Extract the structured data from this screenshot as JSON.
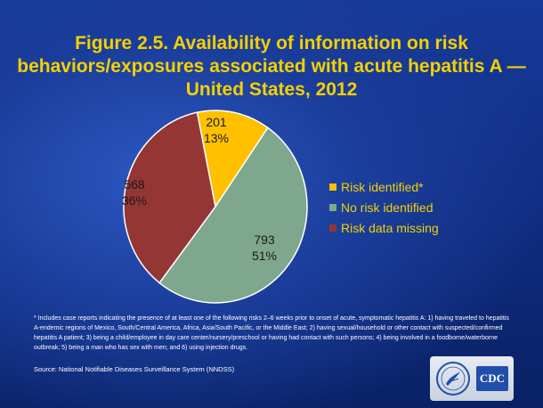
{
  "title": {
    "line1": "Figure 2.5. Availability of information on risk",
    "line2": "behaviors/exposures associated with acute hepatitis A —",
    "line3": "United States, 2012"
  },
  "chart_data": {
    "type": "pie",
    "slices": [
      {
        "name": "Risk identified*",
        "value": 201,
        "percent": "13%",
        "color": "#ffc000"
      },
      {
        "name": "No risk identified",
        "value": 793,
        "percent": "51%",
        "color": "#7fa78e"
      },
      {
        "name": "Risk data missing",
        "value": 568,
        "percent": "36%",
        "color": "#943634"
      }
    ],
    "legend_position": "right"
  },
  "footnote": "* Includes case reports indicating the presence of at least one of the following risks 2–6 weeks prior to onset of acute, symptomatic hepatitis A: 1)  having traveled to hepatitis A-endemic regions of Mexico, South/Central America,  Africa,  Asia/South Pacific, or the Middle East; 2) having sexual/household or other contact with suspected/confirmed hepatitis A patient; 3) being a child/employee in day care center/nursery/preschool  or having had contact with such persons; 4)  being involved in a foodborne/waterborne outbreak; 5)  being a man who has sex with men; and 6)  using injection drugs.",
  "source": "Source: National  Notifiable Diseases  Surveillance System (NNDSS)",
  "logo": {
    "cdc_text": "CDC"
  }
}
